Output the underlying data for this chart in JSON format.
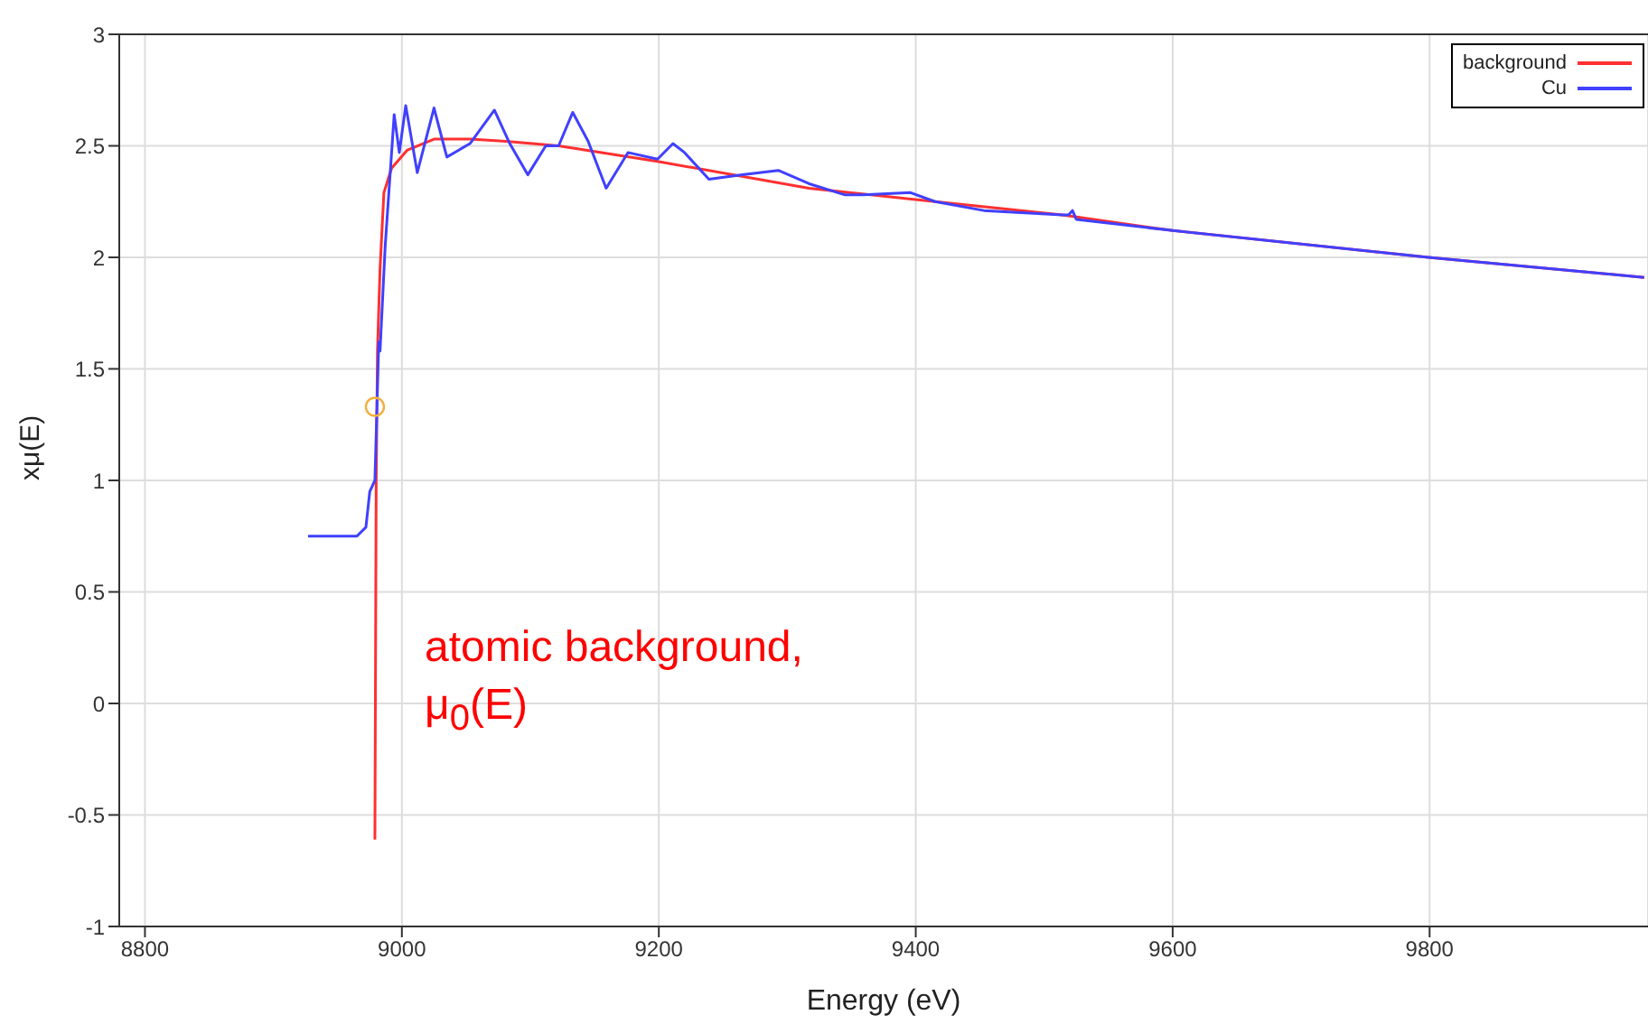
{
  "chart_data": {
    "type": "line",
    "xlabel": "Energy    (eV)",
    "ylabel": "xμ(E)",
    "xlim": [
      8780,
      9970
    ],
    "xticks": [
      8800,
      9000,
      9200,
      9400,
      9600,
      9800
    ],
    "ylim": [
      -1,
      3
    ],
    "yticks": [
      -1,
      -0.5,
      0,
      0.5,
      1,
      1.5,
      2,
      2.5,
      3
    ],
    "grid": true,
    "legend": "top right",
    "marker": "none",
    "line_style": "solid",
    "series": [
      {
        "name": "background",
        "color": "#ff3030",
        "x": [
          8979,
          8980,
          8981,
          8983,
          8986,
          8992,
          9004,
          9025,
          9053,
          9081,
          9122,
          9199,
          9317,
          9415,
          9514,
          9600,
          9799,
          9967
        ],
        "values": [
          -0.61,
          1.0,
          1.58,
          1.95,
          2.29,
          2.4,
          2.48,
          2.53,
          2.53,
          2.52,
          2.5,
          2.43,
          2.31,
          2.25,
          2.19,
          2.12,
          2.0,
          1.91
        ]
      },
      {
        "name": "Cu",
        "color": "#4040ff",
        "x": [
          8927,
          8965,
          8972,
          8975,
          8979,
          8982,
          8983,
          8987,
          8992,
          8994,
          8998,
          9003,
          9012,
          9025,
          9035,
          9044,
          9053,
          9072,
          9084,
          9098,
          9112,
          9122,
          9133,
          9145,
          9159,
          9176,
          9199,
          9211,
          9220,
          9239,
          9265,
          9293,
          9317,
          9345,
          9359,
          9396,
          9415,
          9453,
          9514,
          9519,
          9522,
          9525,
          9600,
          9799,
          9967
        ],
        "values": [
          0.75,
          0.75,
          0.79,
          0.95,
          1.0,
          1.62,
          1.58,
          2.05,
          2.47,
          2.64,
          2.47,
          2.68,
          2.38,
          2.67,
          2.45,
          2.48,
          2.51,
          2.66,
          2.51,
          2.37,
          2.5,
          2.5,
          2.65,
          2.52,
          2.31,
          2.47,
          2.44,
          2.51,
          2.47,
          2.35,
          2.37,
          2.39,
          2.33,
          2.28,
          2.28,
          2.29,
          2.25,
          2.21,
          2.19,
          2.19,
          2.21,
          2.17,
          2.12,
          2.0,
          1.91
        ]
      },
      {
        "type": "scatter",
        "color": "#f0b040",
        "marker": "circle",
        "x": [
          8979
        ],
        "values": [
          1.33
        ]
      }
    ],
    "annotations": [
      "atomic background,\nμ$_{0}$(E)"
    ]
  }
}
